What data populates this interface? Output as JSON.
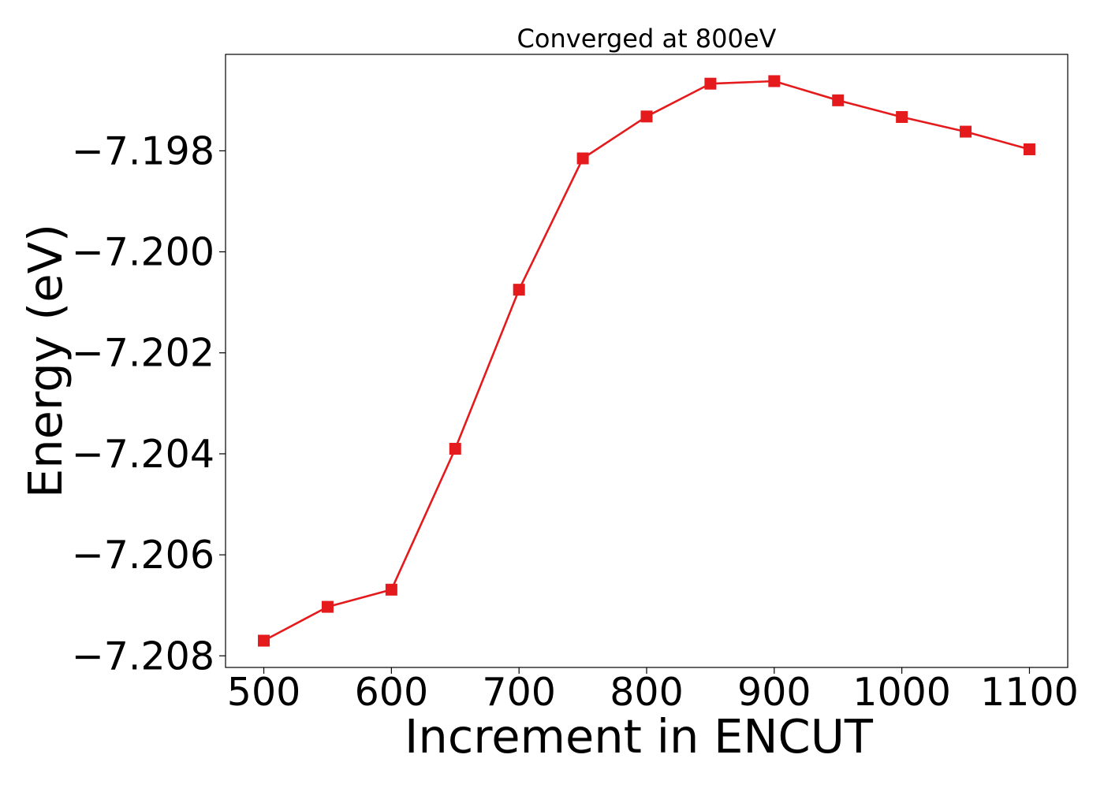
{
  "chart_data": {
    "type": "line",
    "title": "Converged at 800eV",
    "xlabel": "Increment in ENCUT",
    "ylabel": "Energy (eV)",
    "xlim": [
      470,
      1130
    ],
    "ylim": [
      -7.20823,
      -7.19609
    ],
    "x_ticks": [
      500,
      600,
      700,
      800,
      900,
      1000,
      1100
    ],
    "x_tick_labels": [
      "500",
      "600",
      "700",
      "800",
      "900",
      "1000",
      "1100"
    ],
    "y_ticks": [
      -7.198,
      -7.2,
      -7.202,
      -7.204,
      -7.206,
      -7.208
    ],
    "y_tick_labels": [
      "−7.198",
      "−7.200",
      "−7.202",
      "−7.204",
      "−7.206",
      "−7.208"
    ],
    "grid": false,
    "series": [
      {
        "marker": "square",
        "color": "#e41a1c",
        "x": [
          500,
          550,
          600,
          650,
          700,
          750,
          800,
          850,
          900,
          950,
          1000,
          1050,
          1100
        ],
        "y": [
          -7.2077,
          -7.20703,
          -7.20669,
          -7.2039,
          -7.20075,
          -7.19815,
          -7.19732,
          -7.19667,
          -7.19662,
          -7.197,
          -7.19733,
          -7.19762,
          -7.19797
        ]
      }
    ]
  }
}
